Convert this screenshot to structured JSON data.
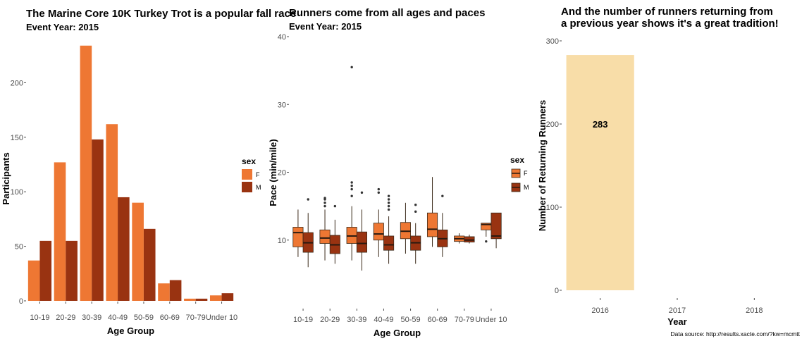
{
  "colors": {
    "F": "#EE7733",
    "M": "#993311",
    "returning": "#F8DDA8",
    "outline": "#3a2a1a"
  },
  "chart_data": [
    {
      "type": "bar",
      "title": "The Marine Core 10K Turkey Trot is a popular fall race",
      "subtitle": "Event Year: 2015",
      "xlabel": "Age Group",
      "ylabel": "Participants",
      "categories": [
        "10-19",
        "20-29",
        "30-39",
        "40-49",
        "50-59",
        "60-69",
        "70-79",
        "Under 10"
      ],
      "series": [
        {
          "name": "F",
          "values": [
            37,
            127,
            234,
            162,
            90,
            16,
            2,
            5
          ]
        },
        {
          "name": "M",
          "values": [
            55,
            55,
            148,
            95,
            66,
            19,
            2,
            7
          ]
        }
      ],
      "ylim": [
        0,
        250
      ],
      "yticks": [
        0,
        50,
        100,
        150,
        200
      ],
      "legend": {
        "title": "sex",
        "entries": [
          "F",
          "M"
        ],
        "placement": "right"
      },
      "grid": false
    },
    {
      "type": "boxplot",
      "title": "Runners come from all ages and paces",
      "subtitle": "Event Year: 2015",
      "xlabel": "Age Group",
      "ylabel": "Pace (min/mile)",
      "categories": [
        "10-19",
        "20-29",
        "30-39",
        "40-49",
        "50-59",
        "60-69",
        "70-79",
        "Under 10"
      ],
      "series": [
        {
          "name": "F",
          "boxes": [
            {
              "category": "10-19",
              "min": 7.5,
              "q1": 9,
              "median": 11.1,
              "q3": 11.9,
              "max": 14.5,
              "outliers": []
            },
            {
              "category": "20-29",
              "min": 7,
              "q1": 9.5,
              "median": 10.3,
              "q3": 11.5,
              "max": 14.5,
              "outliers": [
                15,
                15.5,
                16,
                16.2
              ]
            },
            {
              "category": "30-39",
              "min": 7,
              "q1": 9.5,
              "median": 10.6,
              "q3": 11.9,
              "max": 15,
              "outliers": [
                16.5,
                17.5,
                18,
                18.5,
                35.5
              ]
            },
            {
              "category": "40-49",
              "min": 7.5,
              "q1": 10,
              "median": 10.9,
              "q3": 12.5,
              "max": 14.5,
              "outliers": [
                17,
                17.5
              ]
            },
            {
              "category": "50-59",
              "min": 8,
              "q1": 10.2,
              "median": 11.3,
              "q3": 12.6,
              "max": 15.5,
              "outliers": []
            },
            {
              "category": "60-69",
              "min": 9,
              "q1": 10.5,
              "median": 11.6,
              "q3": 14,
              "max": 19.3,
              "outliers": []
            },
            {
              "category": "70-79",
              "min": 9.5,
              "q1": 9.8,
              "median": 10.2,
              "q3": 10.6,
              "max": 11,
              "outliers": []
            },
            {
              "category": "Under 10",
              "min": 10.5,
              "q1": 11.5,
              "median": 12.3,
              "q3": 12.5,
              "max": 12.5,
              "outliers": [
                9.8
              ]
            }
          ]
        },
        {
          "name": "M",
          "boxes": [
            {
              "category": "10-19",
              "min": 6,
              "q1": 8.2,
              "median": 9.6,
              "q3": 11.1,
              "max": 14,
              "outliers": [
                16
              ]
            },
            {
              "category": "20-29",
              "min": 6.5,
              "q1": 8,
              "median": 9.3,
              "q3": 10.7,
              "max": 13,
              "outliers": [
                15
              ]
            },
            {
              "category": "30-39",
              "min": 5.5,
              "q1": 8.2,
              "median": 9.5,
              "q3": 11.2,
              "max": 14.5,
              "outliers": [
                17
              ]
            },
            {
              "category": "40-49",
              "min": 6.5,
              "q1": 8.5,
              "median": 9.3,
              "q3": 10.6,
              "max": 13.5,
              "outliers": [
                14.5,
                15,
                15.5,
                16,
                16.5
              ]
            },
            {
              "category": "50-59",
              "min": 6.5,
              "q1": 8.5,
              "median": 9.6,
              "q3": 10.6,
              "max": 12.5,
              "outliers": [
                14.2,
                15.2
              ]
            },
            {
              "category": "60-69",
              "min": 7.5,
              "q1": 9,
              "median": 10.2,
              "q3": 11.5,
              "max": 14,
              "outliers": [
                16.5
              ]
            },
            {
              "category": "70-79",
              "min": 9.5,
              "q1": 9.7,
              "median": 10,
              "q3": 10.5,
              "max": 10.8,
              "outliers": []
            },
            {
              "category": "Under 10",
              "min": 8.8,
              "q1": 10.2,
              "median": 10.6,
              "q3": 14,
              "max": 14,
              "outliers": []
            }
          ]
        }
      ],
      "ylim": [
        0,
        40
      ],
      "yticks": [
        10,
        20,
        30,
        40
      ],
      "legend": {
        "title": "sex",
        "entries": [
          "F",
          "M"
        ],
        "placement": "right"
      },
      "grid": false
    },
    {
      "type": "bar",
      "title": "And the number of runners returning from\na previous year shows it's a great tradition!",
      "xlabel": "Year",
      "ylabel": "Number of Returning Runners",
      "categories": [
        "2016",
        "2017",
        "2018"
      ],
      "values": [
        283,
        null,
        null
      ],
      "data_labels": [
        "283"
      ],
      "ylim": [
        0,
        300
      ],
      "yticks": [
        0,
        100,
        200,
        300
      ],
      "grid": false,
      "caption": "Data source: http://results.xacte.com/?kw=mcmtt"
    }
  ]
}
